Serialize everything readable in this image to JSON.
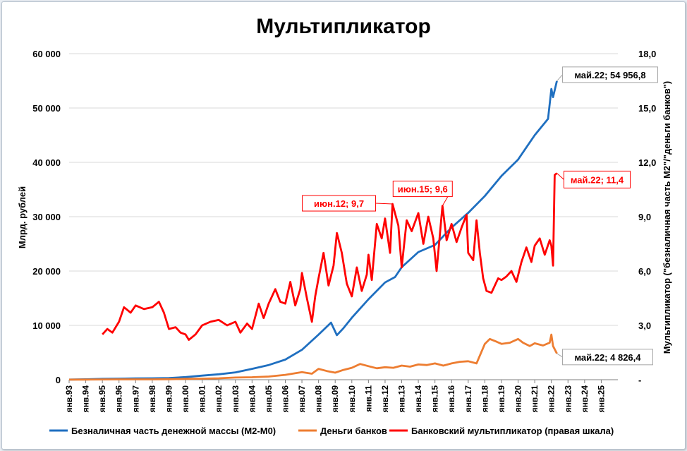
{
  "chart_data": {
    "type": "line",
    "title": "Мультипликатор",
    "ylabel_left": "Млрд. рублей",
    "ylabel_right": "Мультипликатор (\"безналичная часть М2\"/\"деньги банков\")",
    "ylim_left": [
      0,
      60000
    ],
    "ylim_right": [
      0,
      18
    ],
    "yticks_left": [
      "0",
      "10 000",
      "20 000",
      "30 000",
      "40 000",
      "50 000",
      "60 000"
    ],
    "yticks_right": [
      "-",
      "3,0",
      "6,0",
      "9,0",
      "12,0",
      "15,0",
      "18,0"
    ],
    "x_categories": [
      "янв.93",
      "янв.94",
      "янв.95",
      "янв.96",
      "янв.97",
      "янв.98",
      "янв.99",
      "янв.00",
      "янв.01",
      "янв.02",
      "янв.03",
      "янв.04",
      "янв.05",
      "янв.06",
      "янв.07",
      "янв.08",
      "янв.09",
      "янв.10",
      "янв.11",
      "янв.12",
      "янв.13",
      "янв.14",
      "янв.15",
      "янв.16",
      "янв.17",
      "янв.18",
      "янв.19",
      "янв.20",
      "янв.21",
      "янв.22",
      "янв.23",
      "янв.24",
      "янв.25"
    ],
    "grid": "horizontal",
    "legend_position": "bottom",
    "series": [
      {
        "name": "Безналичная часть денежной массы (М2-М0)",
        "axis": "left",
        "color": "#1f6fc0",
        "points": [
          [
            1993.0,
            30
          ],
          [
            1994.0,
            80
          ],
          [
            1995.0,
            150
          ],
          [
            1996.0,
            190
          ],
          [
            1997.0,
            230
          ],
          [
            1998.0,
            260
          ],
          [
            1999.0,
            300
          ],
          [
            2000.0,
            480
          ],
          [
            2001.0,
            750
          ],
          [
            2002.0,
            1000
          ],
          [
            2003.0,
            1350
          ],
          [
            2004.0,
            2000
          ],
          [
            2005.0,
            2700
          ],
          [
            2006.0,
            3700
          ],
          [
            2007.0,
            5500
          ],
          [
            2008.0,
            8300
          ],
          [
            2008.75,
            10500
          ],
          [
            2009.1,
            8200
          ],
          [
            2009.5,
            9500
          ],
          [
            2010.0,
            11400
          ],
          [
            2011.0,
            14800
          ],
          [
            2012.0,
            17900
          ],
          [
            2012.6,
            18900
          ],
          [
            2013.0,
            20700
          ],
          [
            2014.0,
            23500
          ],
          [
            2015.0,
            24800
          ],
          [
            2016.0,
            28000
          ],
          [
            2017.0,
            30700
          ],
          [
            2018.0,
            33800
          ],
          [
            2019.0,
            37500
          ],
          [
            2020.0,
            40500
          ],
          [
            2021.0,
            45000
          ],
          [
            2021.8,
            48000
          ],
          [
            2022.0,
            53500
          ],
          [
            2022.1,
            52000
          ],
          [
            2022.33,
            54956.8
          ]
        ]
      },
      {
        "name": "Деньги банков",
        "axis": "left",
        "color": "#ed7d31",
        "points": [
          [
            1993.0,
            10
          ],
          [
            1994.0,
            30
          ],
          [
            1995.0,
            50
          ],
          [
            1996.0,
            60
          ],
          [
            1997.0,
            70
          ],
          [
            1998.0,
            70
          ],
          [
            1999.0,
            90
          ],
          [
            2000.0,
            150
          ],
          [
            2001.0,
            200
          ],
          [
            2002.0,
            260
          ],
          [
            2003.0,
            400
          ],
          [
            2004.0,
            450
          ],
          [
            2005.0,
            580
          ],
          [
            2006.0,
            900
          ],
          [
            2007.0,
            1400
          ],
          [
            2007.6,
            1100
          ],
          [
            2008.0,
            2000
          ],
          [
            2008.5,
            1600
          ],
          [
            2009.0,
            1300
          ],
          [
            2009.5,
            1800
          ],
          [
            2010.0,
            2200
          ],
          [
            2010.5,
            2900
          ],
          [
            2011.0,
            2500
          ],
          [
            2011.5,
            2100
          ],
          [
            2012.0,
            2300
          ],
          [
            2012.5,
            2200
          ],
          [
            2013.0,
            2600
          ],
          [
            2013.5,
            2400
          ],
          [
            2014.0,
            2800
          ],
          [
            2014.5,
            2700
          ],
          [
            2015.0,
            3000
          ],
          [
            2015.5,
            2600
          ],
          [
            2016.0,
            3000
          ],
          [
            2016.5,
            3300
          ],
          [
            2017.0,
            3400
          ],
          [
            2017.5,
            3000
          ],
          [
            2018.0,
            6600
          ],
          [
            2018.3,
            7500
          ],
          [
            2018.7,
            7000
          ],
          [
            2019.0,
            6600
          ],
          [
            2019.5,
            6800
          ],
          [
            2020.0,
            7500
          ],
          [
            2020.3,
            6800
          ],
          [
            2020.7,
            6200
          ],
          [
            2021.0,
            6700
          ],
          [
            2021.5,
            6300
          ],
          [
            2021.9,
            6800
          ],
          [
            2022.0,
            8300
          ],
          [
            2022.1,
            6200
          ],
          [
            2022.33,
            4826.4
          ]
        ]
      },
      {
        "name": "Банковский мультипликатор (правая шкала)",
        "axis": "right",
        "color": "#ff0000",
        "points": [
          [
            1995.0,
            2.5
          ],
          [
            1995.3,
            2.8
          ],
          [
            1995.6,
            2.6
          ],
          [
            1996.0,
            3.2
          ],
          [
            1996.3,
            4.0
          ],
          [
            1996.7,
            3.7
          ],
          [
            1997.0,
            4.1
          ],
          [
            1997.5,
            3.9
          ],
          [
            1998.0,
            4.0
          ],
          [
            1998.4,
            4.3
          ],
          [
            1998.7,
            3.7
          ],
          [
            1999.0,
            2.8
          ],
          [
            1999.4,
            2.9
          ],
          [
            1999.7,
            2.6
          ],
          [
            2000.0,
            2.5
          ],
          [
            2000.2,
            2.2
          ],
          [
            2000.6,
            2.5
          ],
          [
            2001.0,
            3.0
          ],
          [
            2001.5,
            3.2
          ],
          [
            2002.0,
            3.3
          ],
          [
            2002.5,
            3.0
          ],
          [
            2003.0,
            3.2
          ],
          [
            2003.3,
            2.6
          ],
          [
            2003.7,
            3.1
          ],
          [
            2004.0,
            2.8
          ],
          [
            2004.4,
            4.2
          ],
          [
            2004.7,
            3.4
          ],
          [
            2005.0,
            4.2
          ],
          [
            2005.4,
            5.0
          ],
          [
            2005.7,
            4.3
          ],
          [
            2006.0,
            4.2
          ],
          [
            2006.3,
            5.4
          ],
          [
            2006.6,
            4.1
          ],
          [
            2006.9,
            5.0
          ],
          [
            2007.0,
            5.9
          ],
          [
            2007.3,
            4.5
          ],
          [
            2007.6,
            3.2
          ],
          [
            2007.8,
            4.6
          ],
          [
            2008.0,
            5.6
          ],
          [
            2008.3,
            7.0
          ],
          [
            2008.6,
            5.2
          ],
          [
            2008.9,
            6.3
          ],
          [
            2009.1,
            8.1
          ],
          [
            2009.4,
            7.0
          ],
          [
            2009.7,
            5.3
          ],
          [
            2010.0,
            4.6
          ],
          [
            2010.3,
            6.2
          ],
          [
            2010.6,
            4.9
          ],
          [
            2010.9,
            5.8
          ],
          [
            2011.0,
            6.9
          ],
          [
            2011.2,
            5.5
          ],
          [
            2011.5,
            8.6
          ],
          [
            2011.8,
            7.8
          ],
          [
            2012.0,
            8.9
          ],
          [
            2012.3,
            7.0
          ],
          [
            2012.45,
            9.7
          ],
          [
            2012.8,
            8.5
          ],
          [
            2013.0,
            6.2
          ],
          [
            2013.3,
            8.8
          ],
          [
            2013.6,
            8.2
          ],
          [
            2014.0,
            9.2
          ],
          [
            2014.3,
            7.5
          ],
          [
            2014.6,
            9.0
          ],
          [
            2014.9,
            7.8
          ],
          [
            2015.1,
            6.0
          ],
          [
            2015.45,
            9.6
          ],
          [
            2015.7,
            7.7
          ],
          [
            2016.0,
            8.6
          ],
          [
            2016.3,
            7.6
          ],
          [
            2016.6,
            8.4
          ],
          [
            2016.9,
            9.1
          ],
          [
            2017.0,
            7.0
          ],
          [
            2017.3,
            6.6
          ],
          [
            2017.5,
            8.8
          ],
          [
            2017.7,
            7.0
          ],
          [
            2017.9,
            5.6
          ],
          [
            2018.1,
            4.9
          ],
          [
            2018.4,
            4.8
          ],
          [
            2018.8,
            5.6
          ],
          [
            2019.0,
            5.5
          ],
          [
            2019.3,
            5.7
          ],
          [
            2019.6,
            6.0
          ],
          [
            2019.9,
            5.4
          ],
          [
            2020.2,
            6.5
          ],
          [
            2020.5,
            7.3
          ],
          [
            2020.8,
            6.5
          ],
          [
            2021.0,
            7.4
          ],
          [
            2021.3,
            7.8
          ],
          [
            2021.6,
            6.9
          ],
          [
            2021.9,
            7.7
          ],
          [
            2022.0,
            7.4
          ],
          [
            2022.1,
            6.3
          ],
          [
            2022.2,
            11.3
          ],
          [
            2022.33,
            11.4
          ]
        ]
      }
    ],
    "annotations": [
      {
        "text": "май.22;  54 956,8",
        "series": 0,
        "x": 2022.33,
        "y": 54956.8
      },
      {
        "text": "май.22;  4 826,4",
        "series": 1,
        "x": 2022.33,
        "y": 4826.4
      },
      {
        "text": "май.22;   11,4",
        "series": 2,
        "x": 2022.33,
        "y": 11.4
      },
      {
        "text": "июн.12;  9,7",
        "series": 2,
        "x": 2012.45,
        "y": 9.7
      },
      {
        "text": "июн.15;  9,6",
        "series": 2,
        "x": 2015.45,
        "y": 9.6
      }
    ]
  }
}
